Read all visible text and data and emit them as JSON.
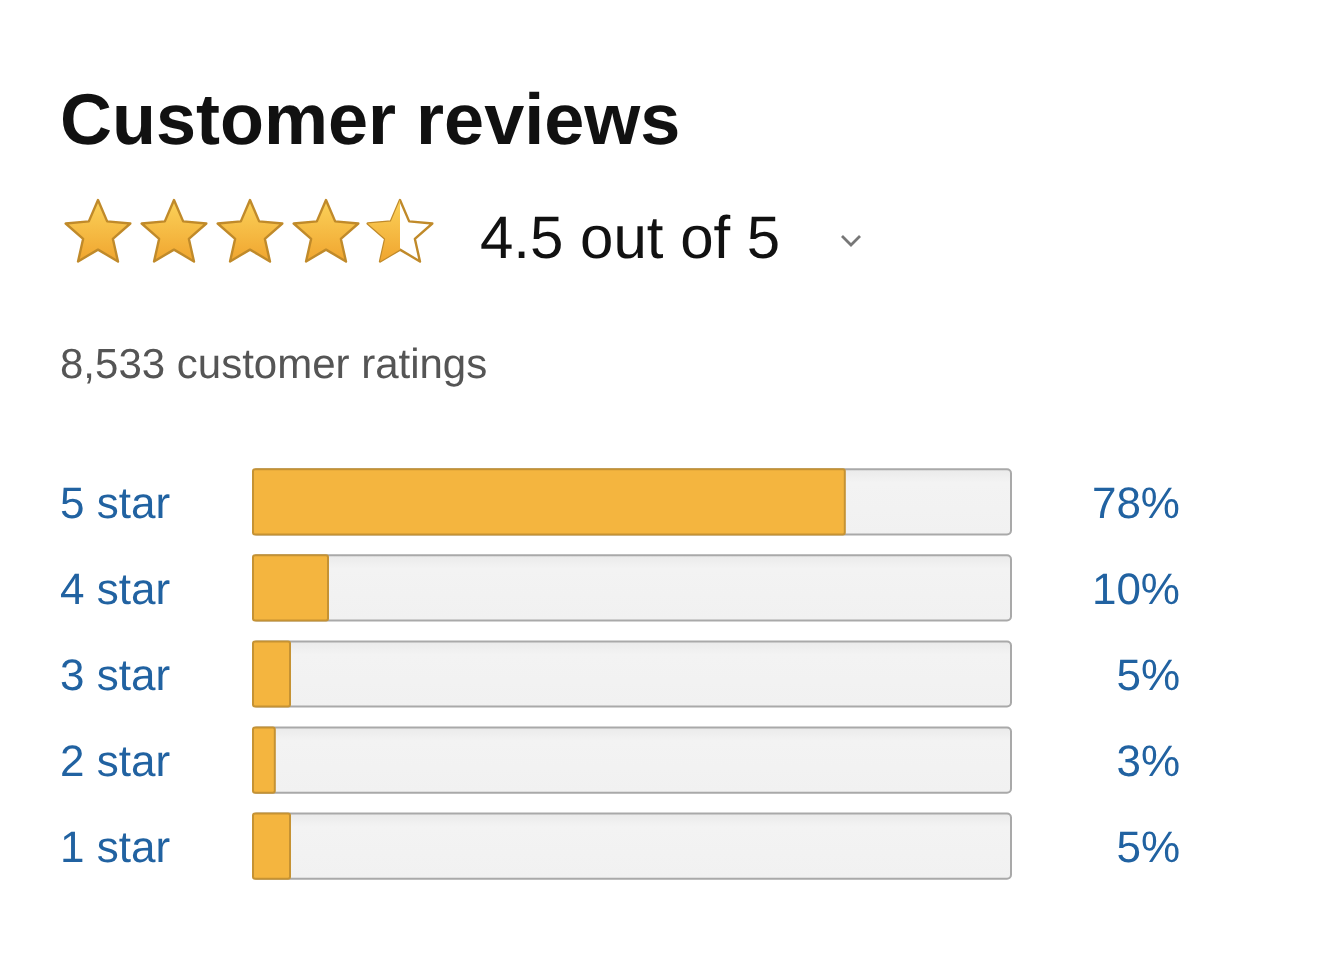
{
  "chart_data": {
    "type": "bar",
    "orientation": "horizontal",
    "title": "Customer reviews",
    "subtitle": "4.5 out of 5",
    "annotations": [
      "8,533 customer ratings"
    ],
    "categories": [
      "5 star",
      "4 star",
      "3 star",
      "2 star",
      "1 star"
    ],
    "values": [
      78,
      10,
      5,
      3,
      5
    ],
    "value_labels": [
      "78%",
      "10%",
      "5%",
      "3%",
      "5%"
    ],
    "color": "#f4b53f",
    "xlim": [
      0,
      100
    ]
  }
}
